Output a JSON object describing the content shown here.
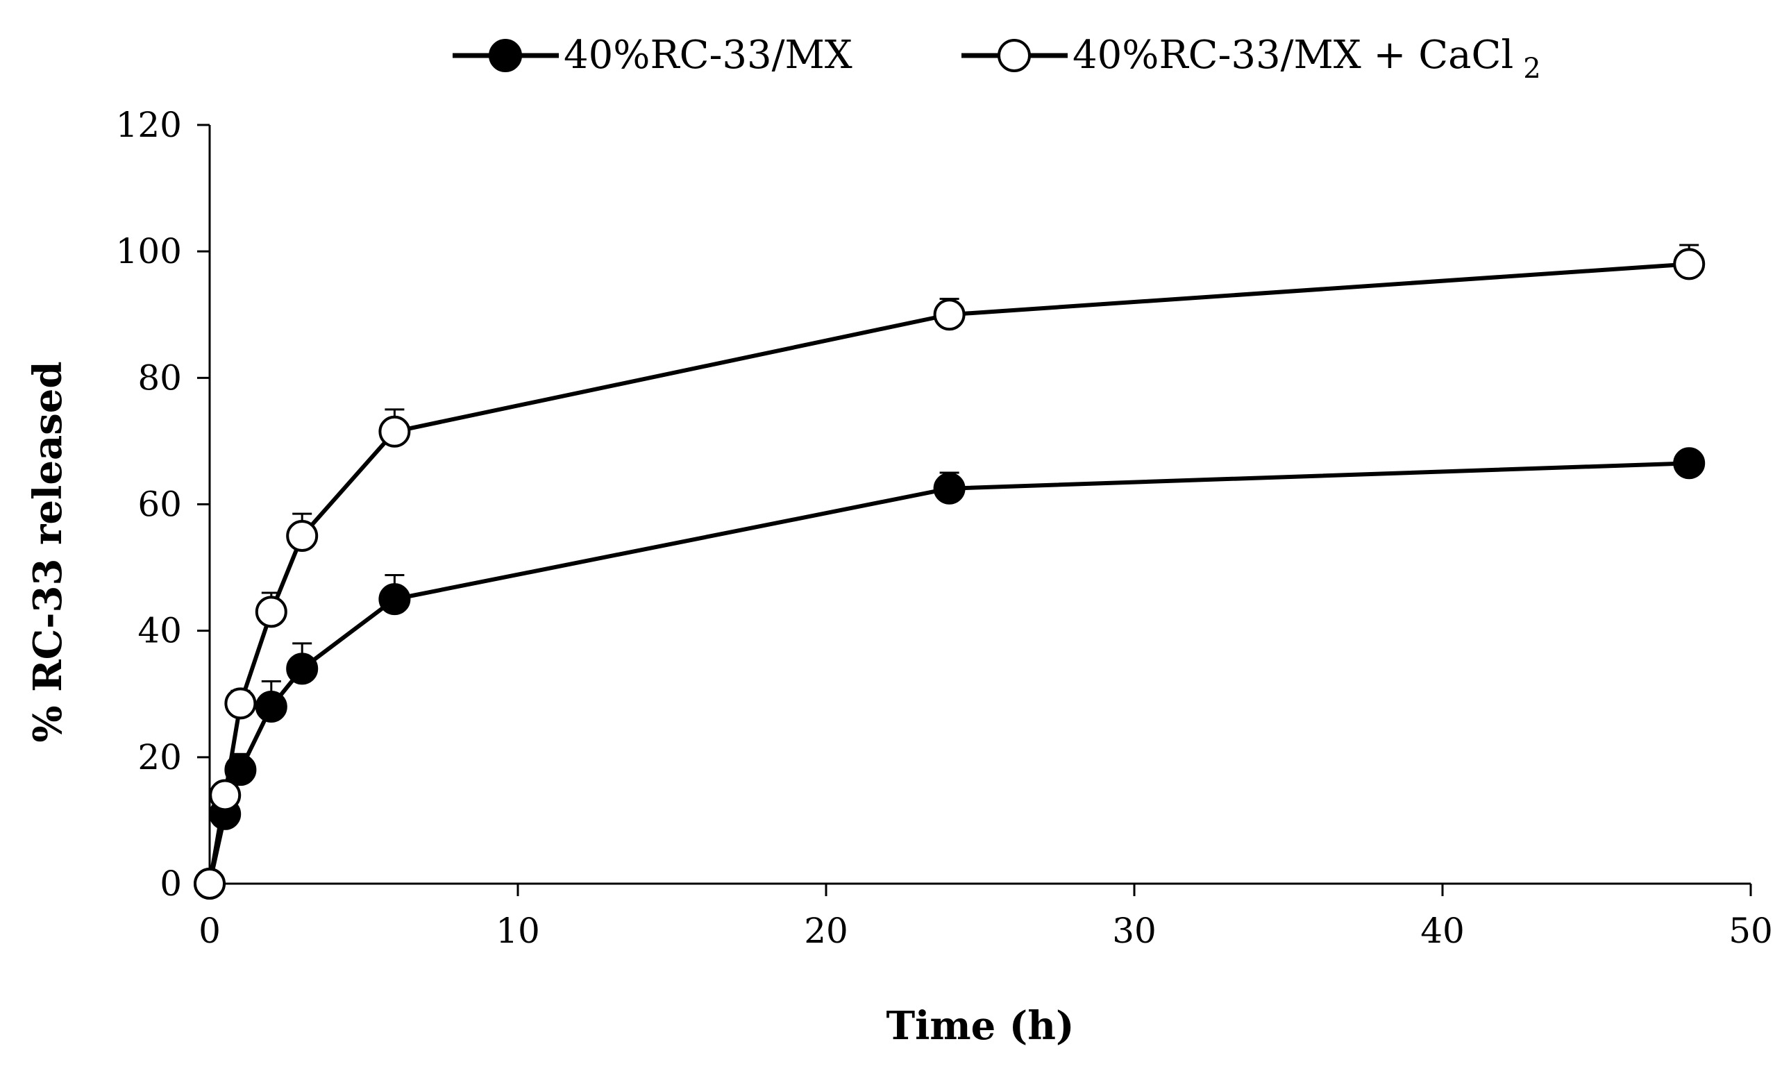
{
  "chart_data": {
    "type": "line",
    "title": "",
    "xlabel": "Time (h)",
    "ylabel": "% RC-33 released",
    "xlim": [
      0,
      50
    ],
    "ylim": [
      0,
      120
    ],
    "xticks": [
      0,
      10,
      20,
      30,
      40,
      50
    ],
    "yticks": [
      0,
      20,
      40,
      60,
      80,
      100,
      120
    ],
    "xtick_labels": [
      "0",
      "10",
      "20",
      "30",
      "40",
      "50"
    ],
    "ytick_labels": [
      "0",
      "20",
      "40",
      "60",
      "80",
      "100",
      "120"
    ],
    "grid": false,
    "legend_position": "top-center",
    "series": [
      {
        "name": "40%RC-33/MX",
        "marker": "filled-circle",
        "color": "#000000",
        "x": [
          0,
          0.5,
          1,
          2,
          3,
          6,
          24,
          48
        ],
        "y": [
          0,
          11,
          18,
          28,
          34,
          45,
          62.5,
          66.5
        ],
        "err": [
          0,
          1.5,
          2.5,
          4,
          4,
          3.8,
          2.5,
          1.5
        ]
      },
      {
        "name": "40%RC-33/MX + CaCl",
        "name_subscript": "2",
        "marker": "open-circle",
        "color": "#000000",
        "x": [
          0,
          0.5,
          1,
          2,
          3,
          6,
          24,
          48
        ],
        "y": [
          0,
          14,
          28.5,
          43,
          55,
          71.5,
          90,
          98
        ],
        "err": [
          0,
          1.5,
          2,
          3,
          3.5,
          3.5,
          2.5,
          3
        ]
      }
    ]
  }
}
